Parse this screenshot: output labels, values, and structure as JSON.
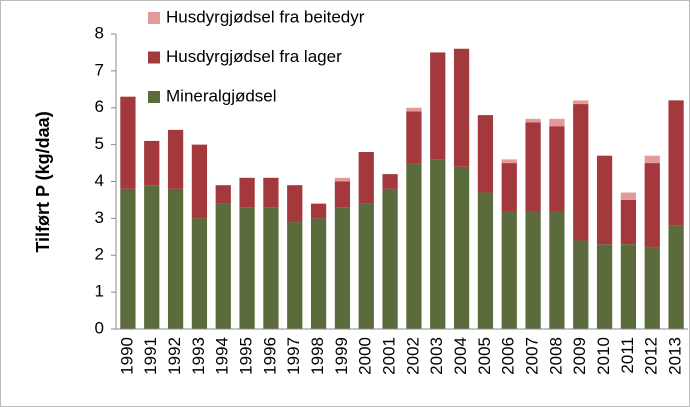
{
  "chart_data": {
    "type": "stacked-bar",
    "y_label": "Tilført P (kg/daa)",
    "categories": [
      "1990",
      "1991",
      "1992",
      "1993",
      "1994",
      "1995",
      "1996",
      "1997",
      "1998",
      "1999",
      "2000",
      "2001",
      "2002",
      "2003",
      "2004",
      "2005",
      "2006",
      "2007",
      "2008",
      "2009",
      "2010",
      "2011",
      "2012",
      "2013"
    ],
    "series": [
      {
        "name": "Mineralgjødsel",
        "color": "#5b6b3b",
        "values": [
          3.8,
          3.9,
          3.8,
          3.0,
          3.4,
          3.3,
          3.3,
          2.9,
          3.0,
          3.3,
          3.4,
          3.8,
          4.5,
          4.6,
          4.4,
          3.7,
          3.2,
          3.2,
          3.2,
          2.4,
          2.3,
          2.3,
          2.2,
          2.8
        ]
      },
      {
        "name": "Husdyrgjødsel fra lager",
        "color": "#a3393d",
        "values": [
          2.5,
          1.2,
          1.6,
          2.0,
          0.5,
          0.8,
          0.8,
          1.0,
          0.4,
          0.7,
          1.4,
          0.4,
          1.4,
          2.9,
          3.2,
          2.1,
          1.3,
          2.4,
          2.3,
          3.7,
          2.4,
          1.2,
          2.3,
          3.4
        ]
      },
      {
        "name": "Husdyrgjødsel fra beitedyr",
        "color": "#e39a9b",
        "values": [
          0,
          0,
          0,
          0,
          0,
          0,
          0,
          0,
          0,
          0.1,
          0,
          0,
          0.1,
          0,
          0,
          0,
          0.1,
          0.1,
          0.2,
          0.1,
          0,
          0.2,
          0.2,
          0
        ]
      }
    ],
    "ylim": [
      0,
      8
    ],
    "yticks": [
      0,
      1,
      2,
      3,
      4,
      5,
      6,
      7,
      8
    ],
    "legend": "top-left"
  }
}
